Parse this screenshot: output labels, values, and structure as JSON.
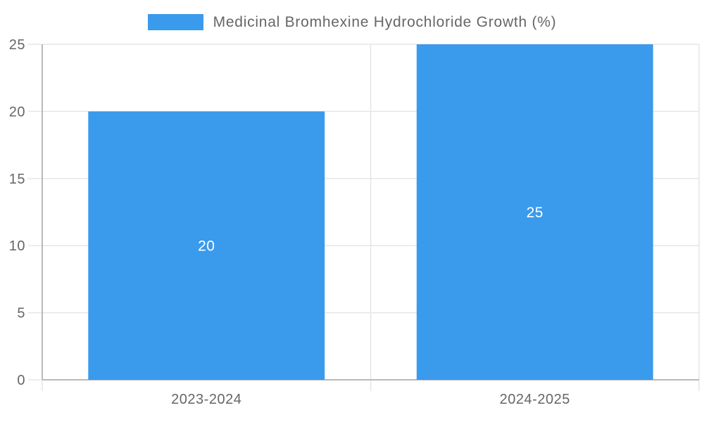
{
  "chart_data": {
    "type": "bar",
    "title": "Medicinal Bromhexine Hydrochloride Growth (%)",
    "legend": {
      "position": "top-center",
      "label": "Medicinal Bromhexine Hydrochloride Growth (%)"
    },
    "categories": [
      "2023-2024",
      "2024-2025"
    ],
    "values": [
      20,
      25
    ],
    "value_labels": [
      "20",
      "25"
    ],
    "xlabel": "",
    "ylabel": "",
    "yticks": [
      0,
      5,
      10,
      15,
      20,
      25
    ],
    "ylim": [
      0,
      25
    ],
    "grid": true,
    "colors": {
      "bar": "#3a9aec",
      "grid": "#e6e6e6",
      "axis": "#b9b9b9",
      "text": "#666666",
      "value_label": "#ffffff",
      "background": "#ffffff"
    }
  }
}
